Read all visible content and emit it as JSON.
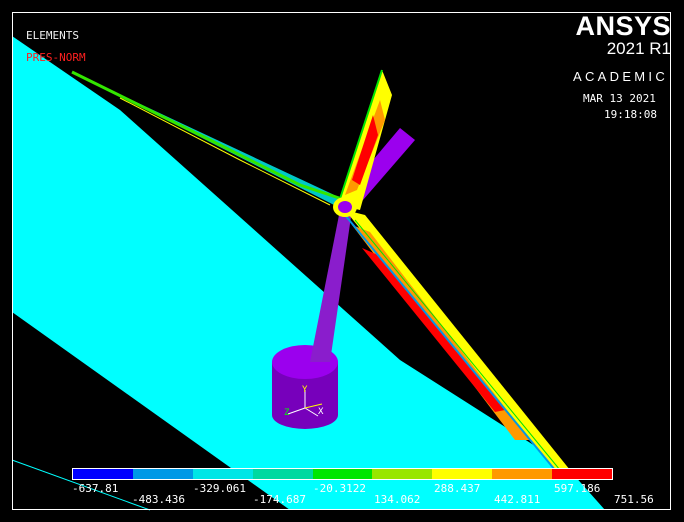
{
  "overlay": {
    "elements_label": "ELEMENTS",
    "result_label": "PRES-NORM",
    "logo_name": "ANSYS",
    "logo_release": "2021 R1",
    "license": "ACADEMIC",
    "date": "MAR 13 2021",
    "time": "19:18:08"
  },
  "colors": {
    "background": "#000000",
    "ground_plane": "#00ffff",
    "tower": "#8800cc",
    "legend_text": "#ffffff",
    "result_label": "#ff2020"
  },
  "contour_colors": [
    "#0000ff",
    "#0099e6",
    "#00e6e6",
    "#00d9a0",
    "#00e600",
    "#99e600",
    "#ffff00",
    "#ff9900",
    "#ff0000"
  ],
  "contour_legend": {
    "row1": [
      "-637.81",
      "-329.061",
      "-20.3122",
      "288.437",
      "597.186"
    ],
    "row2": [
      "-483.436",
      "-174.687",
      "134.062",
      "442.811",
      "751.56"
    ]
  },
  "triad_labels": [
    "Y",
    "Z",
    "X"
  ]
}
